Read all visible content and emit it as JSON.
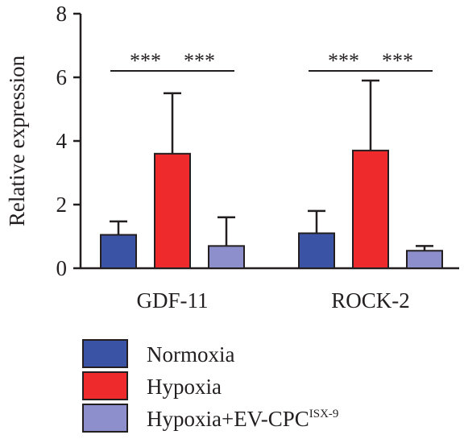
{
  "chart_data": {
    "type": "bar",
    "title": "",
    "xlabel": "",
    "ylabel": "Relative expression",
    "ylim": [
      0,
      8
    ],
    "yticks": [
      0,
      2,
      4,
      6,
      8
    ],
    "categories": [
      "GDF-11",
      "ROCK-2"
    ],
    "series": [
      {
        "name": "Normoxia",
        "color": "#3a53a4",
        "values": [
          1.05,
          1.1
        ],
        "errors": [
          0.42,
          0.7
        ]
      },
      {
        "name": "Hypoxia",
        "color": "#ee2a2d",
        "values": [
          3.6,
          3.7
        ],
        "errors": [
          1.9,
          2.2
        ]
      },
      {
        "name": "Hypoxia+EV-CPC",
        "name_superscript": "ISX-9",
        "color": "#8c8fcc",
        "values": [
          0.7,
          0.55
        ],
        "errors": [
          0.9,
          0.15
        ]
      }
    ],
    "significance": [
      {
        "category": "GDF-11",
        "from": "Normoxia",
        "to": "Hypoxia",
        "label": "***"
      },
      {
        "category": "GDF-11",
        "from": "Hypoxia",
        "to": "Hypoxia+EV-CPC",
        "label": "***"
      },
      {
        "category": "ROCK-2",
        "from": "Normoxia",
        "to": "Hypoxia",
        "label": "***"
      },
      {
        "category": "ROCK-2",
        "from": "Hypoxia",
        "to": "Hypoxia+EV-CPC",
        "label": "***"
      }
    ],
    "legend_position": "bottom"
  }
}
